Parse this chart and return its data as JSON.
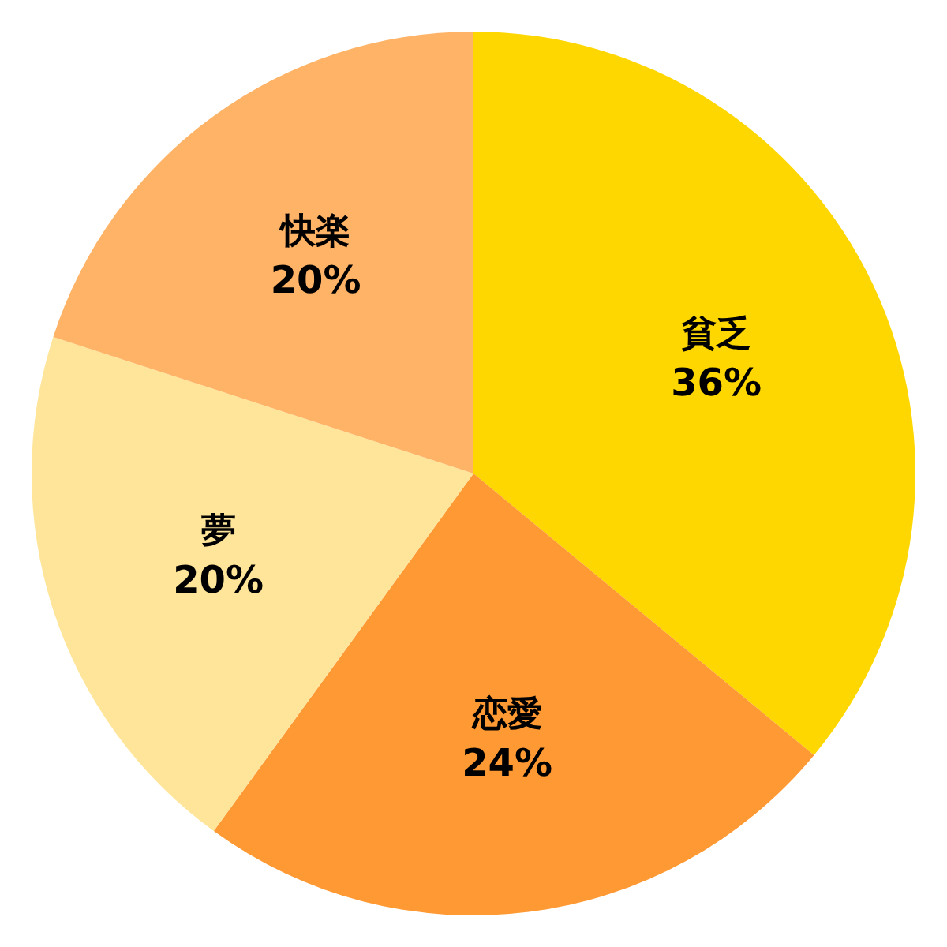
{
  "chart_data": {
    "type": "pie",
    "categories": [
      "貧乏",
      "恋愛",
      "夢",
      "快楽"
    ],
    "values": [
      36,
      24,
      20,
      20
    ],
    "colors": [
      "#ffd700",
      "#ff9933",
      "#ffe599",
      "#ffb366"
    ],
    "value_labels": [
      "36%",
      "24%",
      "20%",
      "20%"
    ]
  }
}
